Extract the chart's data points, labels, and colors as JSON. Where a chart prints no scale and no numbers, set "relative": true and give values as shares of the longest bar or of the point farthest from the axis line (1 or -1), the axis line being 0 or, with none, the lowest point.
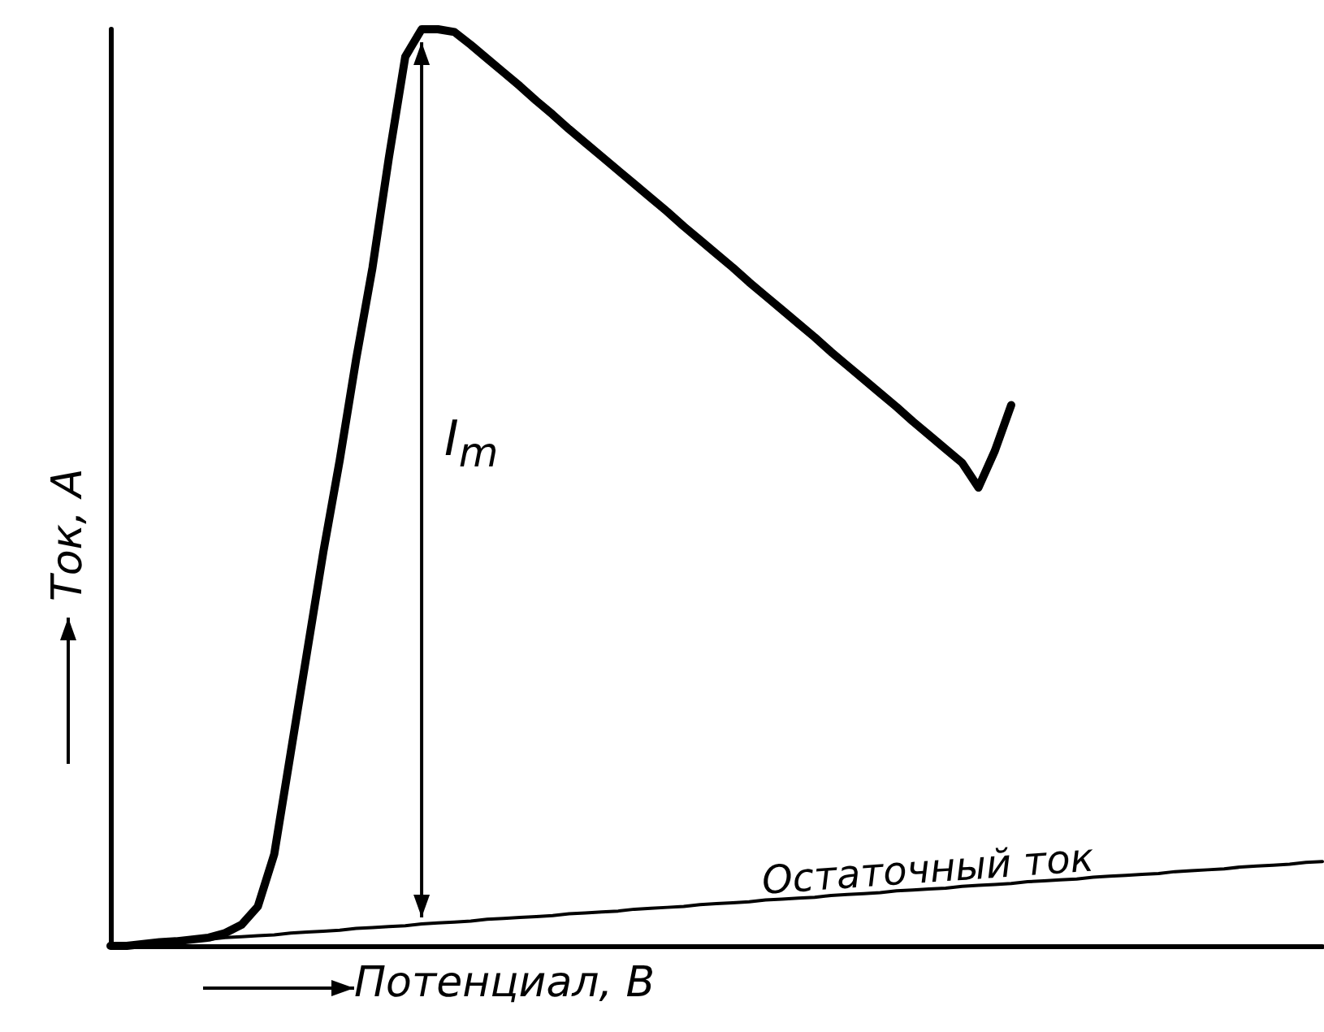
{
  "chart_data": {
    "type": "line",
    "relative": true,
    "xlabel": "Потенциал, В",
    "ylabel": "Ток, А",
    "categories": [
      null,
      null,
      null,
      null,
      null,
      null,
      null,
      null,
      null,
      null,
      null,
      null,
      null,
      null,
      null,
      null,
      null,
      null,
      null,
      null,
      null,
      null,
      null,
      null,
      null,
      null,
      null,
      null,
      null,
      null,
      null,
      null,
      null,
      null,
      null,
      null,
      null,
      null,
      null,
      null,
      null,
      null,
      null,
      null,
      null,
      null,
      null,
      null,
      null,
      null,
      null,
      null,
      null,
      null,
      null,
      null,
      null,
      null,
      null,
      null,
      null,
      null,
      null,
      null,
      null,
      null,
      null,
      null,
      null,
      null,
      null,
      null,
      null,
      null,
      null
    ],
    "series": [
      {
        "color": "#000000",
        "values": [
          0,
          0,
          0.002,
          0.004,
          0.005,
          0.007,
          0.009,
          0.014,
          0.023,
          0.043,
          0.1,
          0.21,
          0.32,
          0.43,
          0.53,
          0.64,
          0.74,
          0.86,
          0.97,
          1,
          1,
          0.997,
          0.983,
          0.968,
          0.953,
          0.938,
          0.922,
          0.907,
          0.891,
          0.876,
          0.861,
          0.846,
          0.831,
          0.816,
          0.801,
          0.785,
          0.77,
          0.755,
          0.74,
          0.724,
          0.709,
          0.694,
          0.679,
          0.664,
          0.648,
          0.633,
          0.618,
          0.603,
          0.588,
          0.572,
          0.557,
          0.542,
          0.527,
          0.5,
          0.54,
          0.59,
          null,
          null,
          null,
          null,
          null,
          null,
          null,
          null,
          null,
          null,
          null,
          null,
          null,
          null,
          null,
          null,
          null,
          null,
          null
        ]
      },
      {
        "color": "#000000",
        "values": [
          0,
          0.001,
          0.002,
          0.004,
          0.005,
          0.006,
          0.007,
          0.009,
          0.01,
          0.011,
          0.012,
          0.014,
          0.015,
          0.016,
          0.017,
          0.019,
          0.02,
          0.021,
          0.022,
          0.024,
          0.025,
          0.026,
          0.027,
          0.029,
          0.03,
          0.031,
          0.032,
          0.033,
          0.035,
          0.036,
          0.037,
          0.038,
          0.04,
          0.041,
          0.042,
          0.043,
          0.045,
          0.046,
          0.047,
          0.048,
          0.05,
          0.051,
          0.052,
          0.053,
          0.055,
          0.056,
          0.057,
          0.058,
          0.06,
          0.061,
          0.062,
          0.063,
          0.065,
          0.066,
          0.067,
          0.068,
          0.07,
          0.071,
          0.072,
          0.073,
          0.075,
          0.076,
          0.077,
          0.078,
          0.079,
          0.081,
          0.082,
          0.083,
          0.084,
          0.086,
          0.087,
          0.088,
          0.089,
          0.091,
          0.092
        ]
      }
    ],
    "annotations": [
      "I$_{m}$",
      "Остаточный ток"
    ],
    "grid": false,
    "marker": "none",
    "line_style": "solid"
  }
}
